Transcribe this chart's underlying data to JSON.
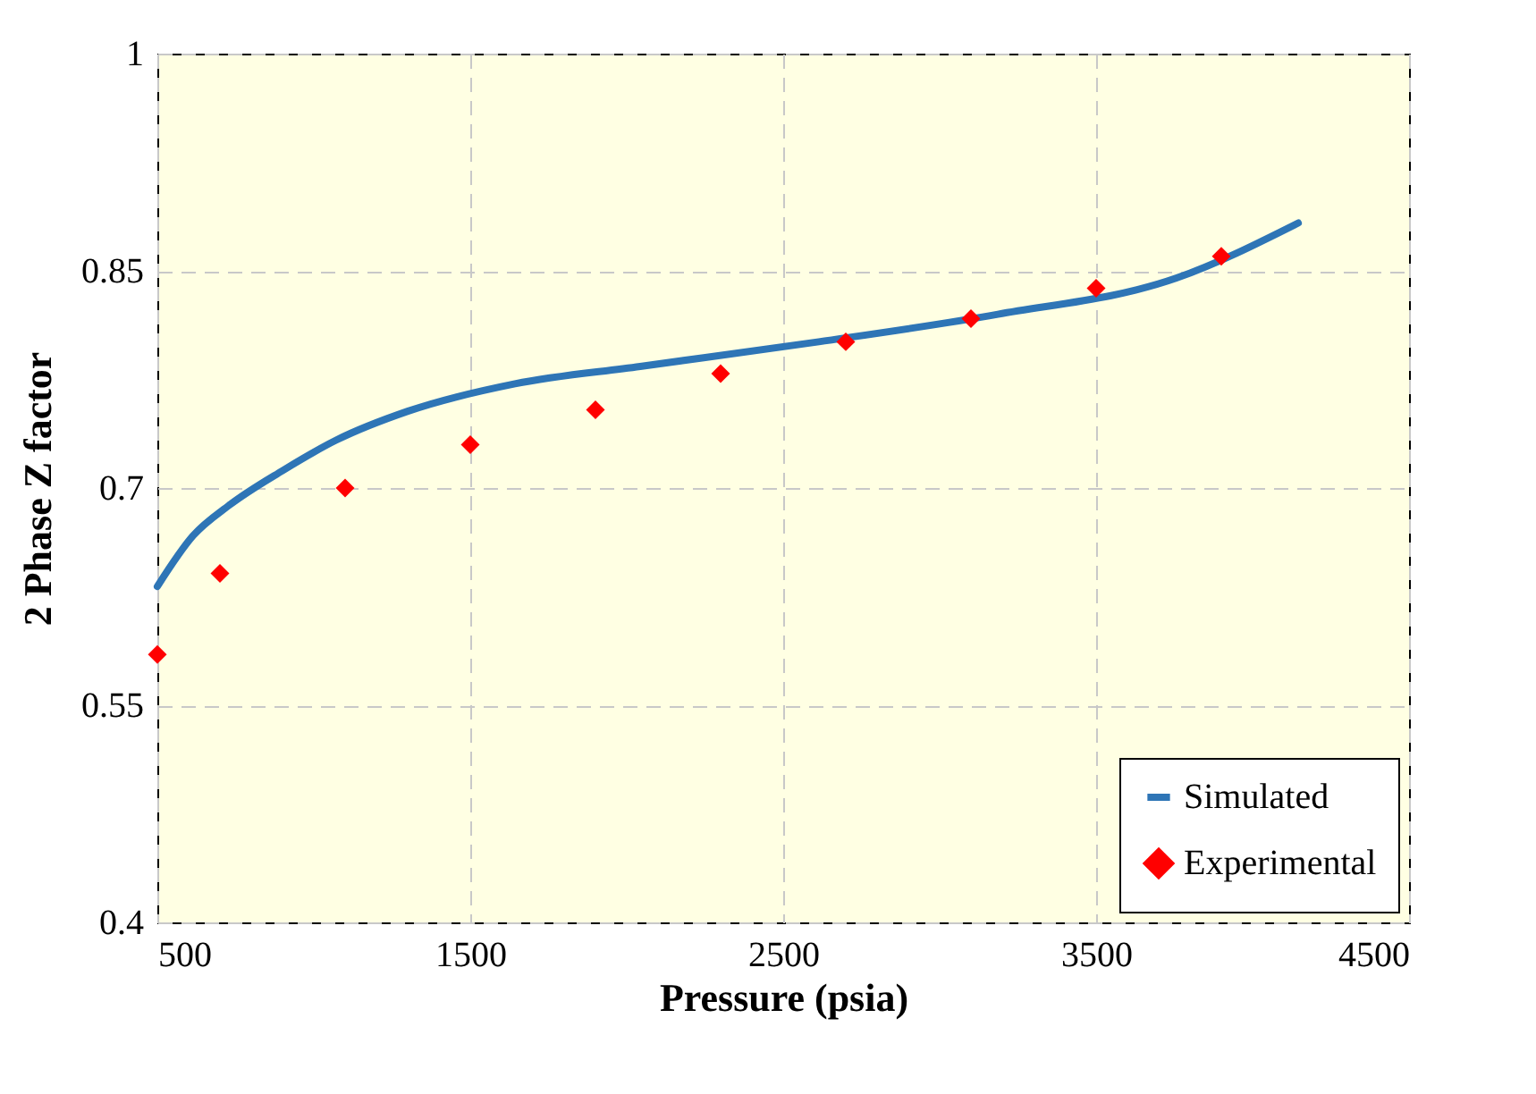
{
  "chart_data": {
    "type": "line",
    "xlabel": "Pressure  (psia)",
    "ylabel": "2 Phase Z factor",
    "xlim": [
      500,
      4500
    ],
    "ylim": [
      0.4,
      1
    ],
    "xticks": [
      500,
      1500,
      2500,
      3500,
      4500
    ],
    "yticks": [
      0.4,
      0.55,
      0.7,
      0.85,
      1
    ],
    "grid": true,
    "legend": "bottom right",
    "series": [
      {
        "name": "Simulated",
        "type": "line",
        "color": "#2e75b6",
        "x": [
          500,
          614,
          729,
          900,
          1071,
          1300,
          1643,
          2043,
          2614,
          3186,
          3757,
          4146
        ],
        "values": [
          0.632,
          0.667,
          0.688,
          0.712,
          0.733,
          0.753,
          0.772,
          0.784,
          0.801,
          0.82,
          0.845,
          0.883
        ]
      },
      {
        "name": "Experimental",
        "type": "scatter",
        "marker": "diamond",
        "color": "#ff0000",
        "x": [
          500,
          700,
          1100,
          1500,
          1900,
          2300,
          2700,
          3100,
          3500,
          3900
        ],
        "values": [
          0.585,
          0.641,
          0.7,
          0.73,
          0.754,
          0.779,
          0.801,
          0.817,
          0.838,
          0.86
        ]
      }
    ]
  }
}
